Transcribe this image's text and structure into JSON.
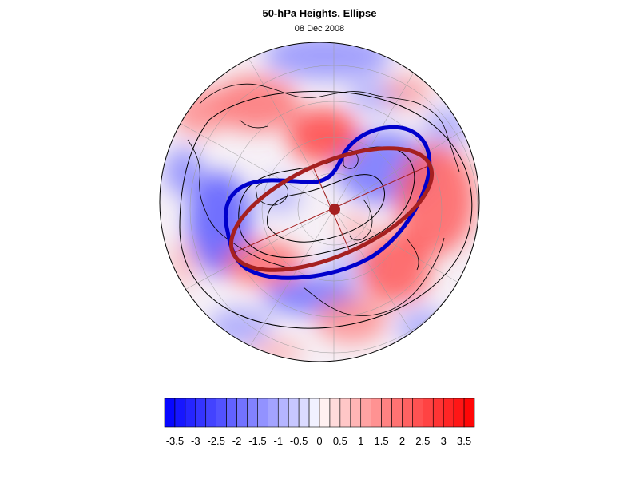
{
  "header": {
    "title": "50-hPa Heights, Ellipse",
    "subtitle": "08 Dec 2008"
  },
  "map": {
    "projection": "polar-stereographic-north",
    "field": "50-hPa height anomaly (shaded)",
    "graticule": true,
    "coastlines": true,
    "colors": {
      "positive": "#ff0000",
      "negative": "#0000ff",
      "contour_line": "#000000",
      "height_contour": "#0000cc",
      "ellipse": "#a52020",
      "centroid": "#a52020"
    }
  },
  "colorbar": {
    "tick_labels": [
      "-3.5",
      "-3",
      "-2.5",
      "-2",
      "-1.5",
      "-1",
      "-0.5",
      "0",
      "0.5",
      "1",
      "1.5",
      "2",
      "2.5",
      "3",
      "3.5"
    ],
    "min": -3.75,
    "max": 3.75,
    "step": 0.25,
    "low_color": "#0000ff",
    "high_color": "#ff0000",
    "mid_color": "#ffffff"
  }
}
